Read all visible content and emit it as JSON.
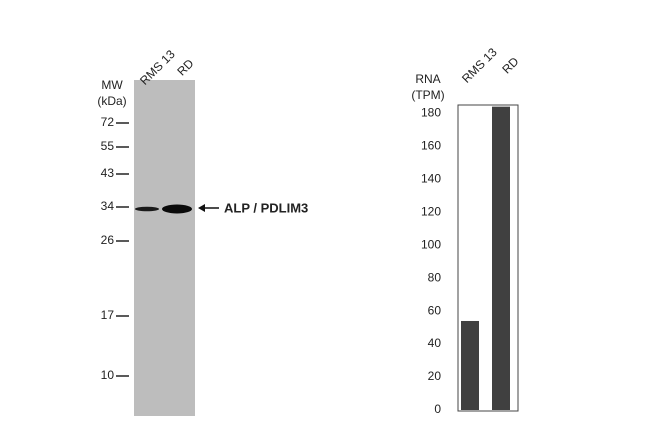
{
  "blot": {
    "lanes": [
      "RMS 13",
      "RD"
    ],
    "mw_title": "MW",
    "mw_unit": "(kDa)",
    "markers": [
      "72",
      "55",
      "43",
      "34",
      "26",
      "17",
      "10"
    ],
    "band_label": "ALP / PDLIM3"
  },
  "chart_data": {
    "type": "bar",
    "ylabel": [
      "RNA",
      "(TPM)"
    ],
    "categories": [
      "RMS 13",
      "RD"
    ],
    "values": [
      54,
      184
    ],
    "color": "#404040",
    "ylim": [
      0,
      185
    ],
    "yticks": [
      0,
      20,
      40,
      60,
      80,
      100,
      120,
      140,
      160,
      180
    ]
  }
}
